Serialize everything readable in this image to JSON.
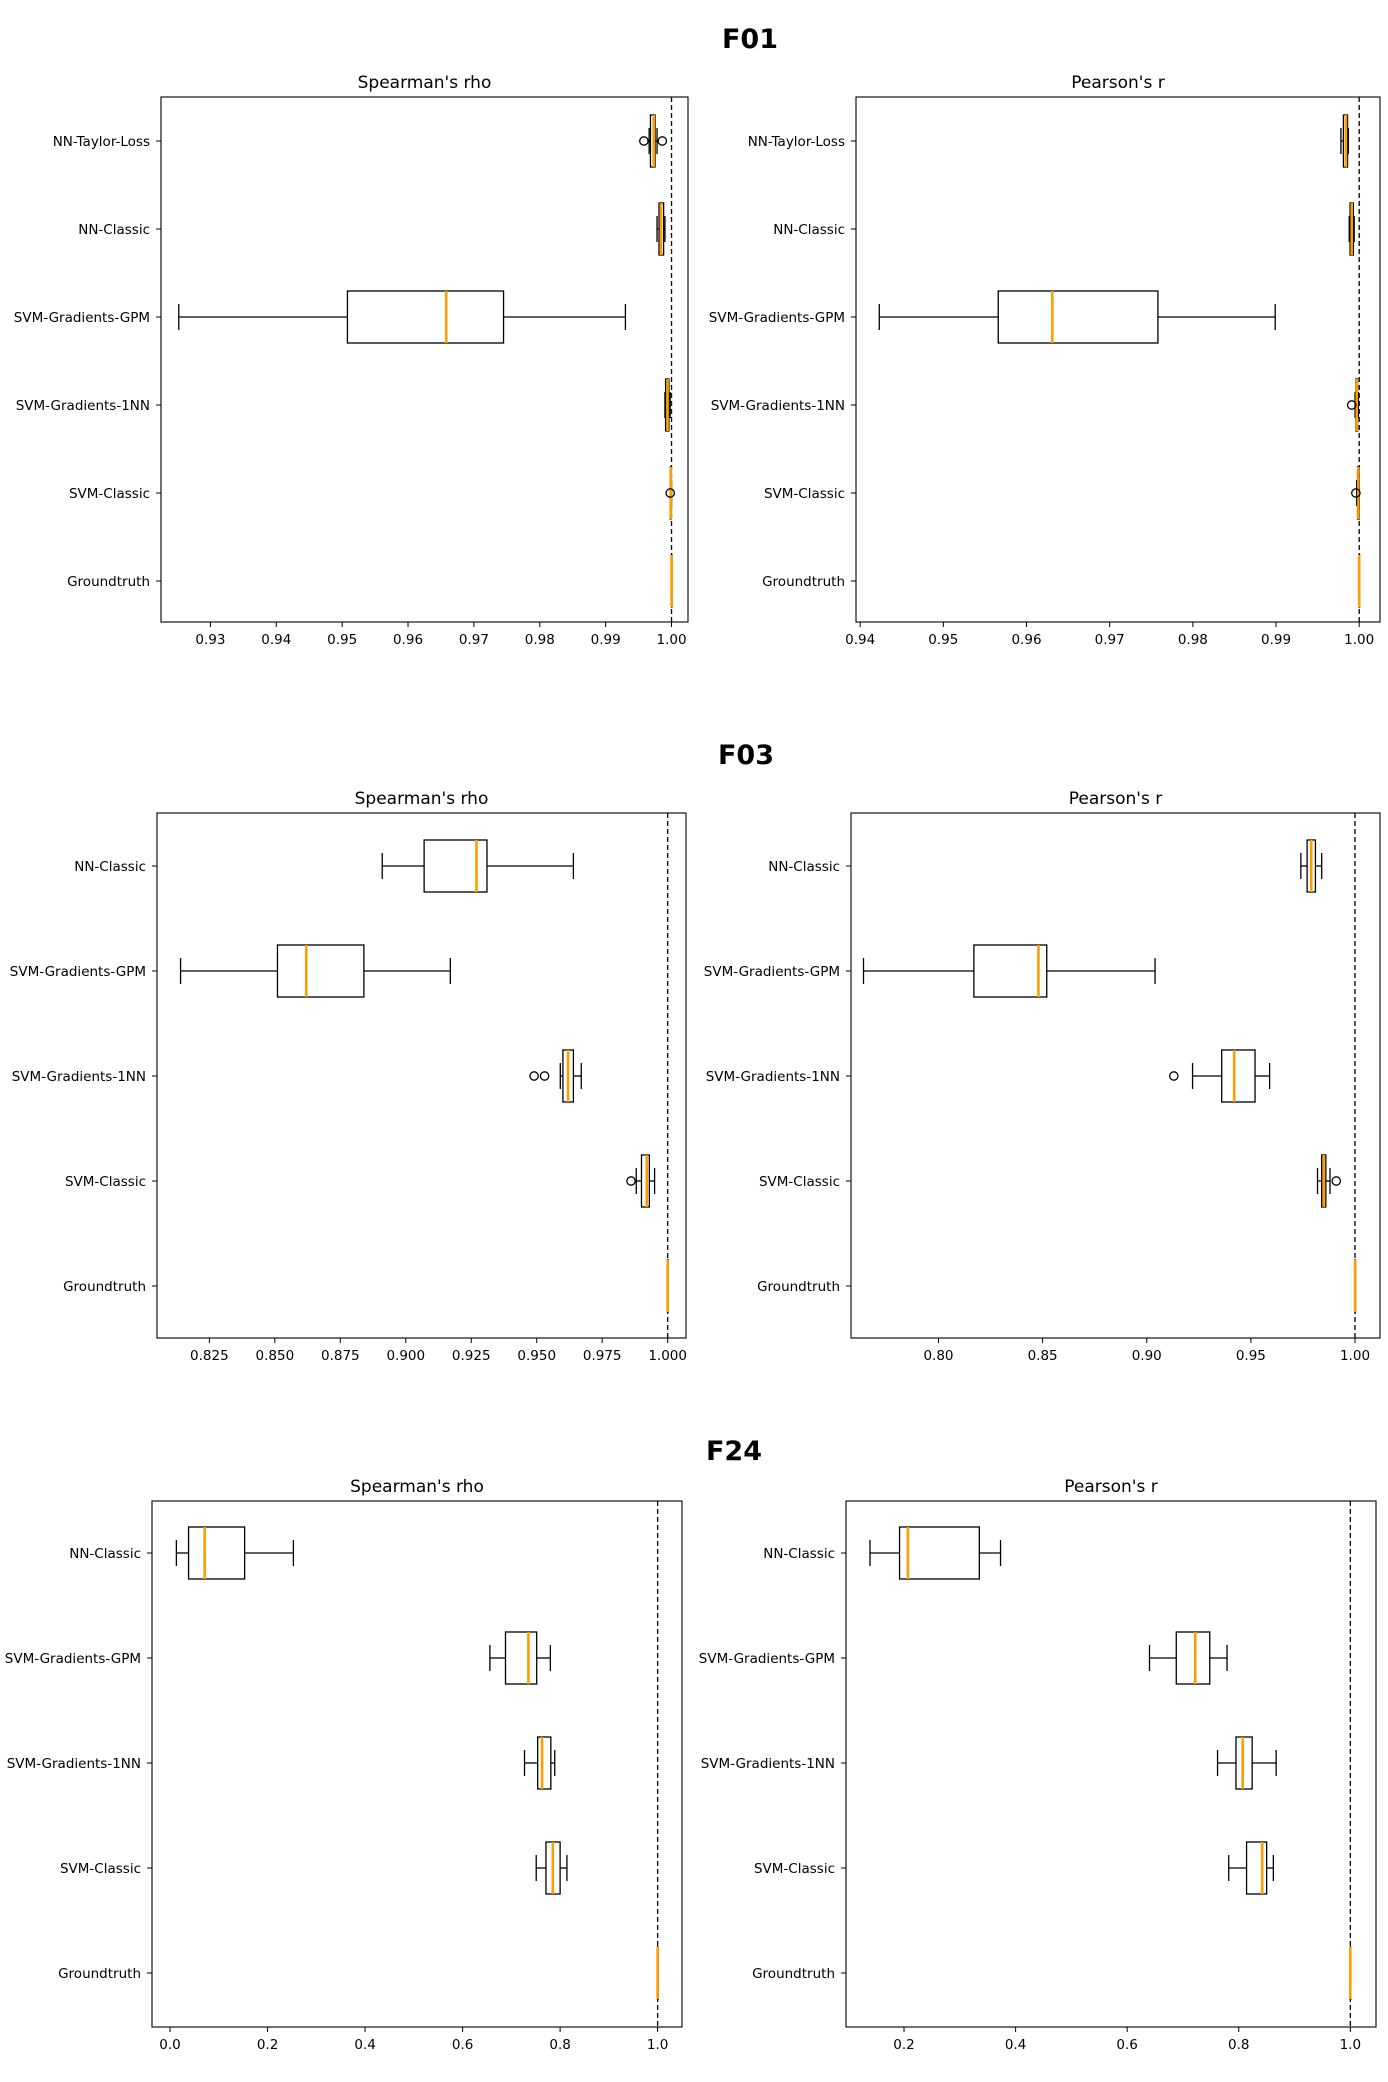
{
  "chart_data": [
    {
      "type": "box",
      "title": "F01",
      "panels": [
        {
          "title": "Spearman's rho",
          "xlim": [
            0.9225,
            1.0025
          ],
          "xticks": [
            0.93,
            0.94,
            0.95,
            0.96,
            0.97,
            0.98,
            0.99,
            1.0
          ],
          "xtick_labels": [
            "0.93",
            "0.94",
            "0.95",
            "0.96",
            "0.97",
            "0.98",
            "0.99",
            "1.00"
          ],
          "reference_line": 1.0,
          "boxes": [
            {
              "label": "NN-Taylor-Loss",
              "whislo": 0.9966,
              "q1": 0.9968,
              "median": 0.9973,
              "q3": 0.9975,
              "whishi": 0.9978,
              "fliers": [
                0.9958,
                0.9986
              ]
            },
            {
              "label": "NN-Classic",
              "whislo": 0.9978,
              "q1": 0.9981,
              "median": 0.9984,
              "q3": 0.9988,
              "whishi": 0.999,
              "fliers": []
            },
            {
              "label": "SVM-Gradients-GPM",
              "whislo": 0.9252,
              "q1": 0.9508,
              "median": 0.9658,
              "q3": 0.9745,
              "whishi": 0.993,
              "fliers": []
            },
            {
              "label": "SVM-Gradients-1NN",
              "whislo": 0.999,
              "q1": 0.9991,
              "median": 0.9994,
              "q3": 0.9996,
              "whishi": 0.9998,
              "fliers": []
            },
            {
              "label": "SVM-Classic",
              "whislo": 0.9998,
              "q1": 0.9998,
              "median": 0.9999,
              "q3": 0.9999,
              "whishi": 1.0,
              "fliers": [
                0.9998
              ]
            },
            {
              "label": "Groundtruth",
              "whislo": 1.0,
              "q1": 1.0,
              "median": 1.0,
              "q3": 1.0,
              "whishi": 1.0,
              "fliers": []
            }
          ]
        },
        {
          "title": "Pearson's r",
          "xlim": [
            0.9395,
            1.0025
          ],
          "xticks": [
            0.94,
            0.95,
            0.96,
            0.97,
            0.98,
            0.99,
            1.0
          ],
          "xtick_labels": [
            "0.94",
            "0.95",
            "0.96",
            "0.97",
            "0.98",
            "0.99",
            "1.00"
          ],
          "reference_line": 1.0,
          "boxes": [
            {
              "label": "NN-Taylor-Loss",
              "whislo": 0.9978,
              "q1": 0.9981,
              "median": 0.9984,
              "q3": 0.9986,
              "whishi": 0.9987,
              "fliers": []
            },
            {
              "label": "NN-Classic",
              "whislo": 0.9988,
              "q1": 0.9989,
              "median": 0.9991,
              "q3": 0.9993,
              "whishi": 0.9994,
              "fliers": []
            },
            {
              "label": "SVM-Gradients-GPM",
              "whislo": 0.9423,
              "q1": 0.9566,
              "median": 0.9631,
              "q3": 0.9758,
              "whishi": 0.9899,
              "fliers": []
            },
            {
              "label": "SVM-Gradients-1NN",
              "whislo": 0.9995,
              "q1": 0.9996,
              "median": 0.9997,
              "q3": 0.9998,
              "whishi": 0.9999,
              "fliers": [
                0.9991
              ]
            },
            {
              "label": "SVM-Classic",
              "whislo": 0.9997,
              "q1": 0.9998,
              "median": 0.9999,
              "q3": 1.0,
              "whishi": 1.0,
              "fliers": [
                0.9996
              ]
            },
            {
              "label": "Groundtruth",
              "whislo": 1.0,
              "q1": 1.0,
              "median": 1.0,
              "q3": 1.0,
              "whishi": 1.0,
              "fliers": []
            }
          ]
        }
      ]
    },
    {
      "type": "box",
      "title": "F03",
      "panels": [
        {
          "title": "Spearman's rho",
          "xlim": [
            0.805,
            1.007
          ],
          "xticks": [
            0.825,
            0.85,
            0.875,
            0.9,
            0.925,
            0.95,
            0.975,
            1.0
          ],
          "xtick_labels": [
            "0.825",
            "0.850",
            "0.875",
            "0.900",
            "0.925",
            "0.950",
            "0.975",
            "1.000"
          ],
          "reference_line": 1.0,
          "boxes": [
            {
              "label": "NN-Classic",
              "whislo": 0.891,
              "q1": 0.907,
              "median": 0.927,
              "q3": 0.931,
              "whishi": 0.964,
              "fliers": []
            },
            {
              "label": "SVM-Gradients-GPM",
              "whislo": 0.814,
              "q1": 0.851,
              "median": 0.862,
              "q3": 0.884,
              "whishi": 0.917,
              "fliers": []
            },
            {
              "label": "SVM-Gradients-1NN",
              "whislo": 0.959,
              "q1": 0.96,
              "median": 0.962,
              "q3": 0.964,
              "whishi": 0.967,
              "fliers": [
                0.949,
                0.953
              ]
            },
            {
              "label": "SVM-Classic",
              "whislo": 0.988,
              "q1": 0.99,
              "median": 0.992,
              "q3": 0.993,
              "whishi": 0.995,
              "fliers": [
                0.986
              ]
            },
            {
              "label": "Groundtruth",
              "whislo": 1.0,
              "q1": 1.0,
              "median": 1.0,
              "q3": 1.0,
              "whishi": 1.0,
              "fliers": []
            }
          ]
        },
        {
          "title": "Pearson's r",
          "xlim": [
            0.758,
            1.012
          ],
          "xticks": [
            0.8,
            0.85,
            0.9,
            0.95,
            1.0
          ],
          "xtick_labels": [
            "0.80",
            "0.85",
            "0.90",
            "0.95",
            "1.00"
          ],
          "reference_line": 1.0,
          "boxes": [
            {
              "label": "NN-Classic",
              "whislo": 0.974,
              "q1": 0.977,
              "median": 0.979,
              "q3": 0.981,
              "whishi": 0.984,
              "fliers": []
            },
            {
              "label": "SVM-Gradients-GPM",
              "whislo": 0.764,
              "q1": 0.817,
              "median": 0.848,
              "q3": 0.852,
              "whishi": 0.904,
              "fliers": []
            },
            {
              "label": "SVM-Gradients-1NN",
              "whislo": 0.922,
              "q1": 0.936,
              "median": 0.942,
              "q3": 0.952,
              "whishi": 0.959,
              "fliers": [
                0.913
              ]
            },
            {
              "label": "SVM-Classic",
              "whislo": 0.982,
              "q1": 0.984,
              "median": 0.985,
              "q3": 0.986,
              "whishi": 0.988,
              "fliers": [
                0.991
              ]
            },
            {
              "label": "Groundtruth",
              "whislo": 1.0,
              "q1": 1.0,
              "median": 1.0,
              "q3": 1.0,
              "whishi": 1.0,
              "fliers": []
            }
          ]
        }
      ]
    },
    {
      "type": "box",
      "title": "F24",
      "panels": [
        {
          "title": "Spearman's rho",
          "xlim": [
            -0.037,
            1.05
          ],
          "xticks": [
            0.0,
            0.2,
            0.4,
            0.6,
            0.8,
            1.0
          ],
          "xtick_labels": [
            "0.0",
            "0.2",
            "0.4",
            "0.6",
            "0.8",
            "1.0"
          ],
          "reference_line": 1.0,
          "boxes": [
            {
              "label": "NN-Classic",
              "whislo": 0.013,
              "q1": 0.038,
              "median": 0.071,
              "q3": 0.153,
              "whishi": 0.253,
              "fliers": []
            },
            {
              "label": "SVM-Gradients-GPM",
              "whislo": 0.656,
              "q1": 0.688,
              "median": 0.735,
              "q3": 0.752,
              "whishi": 0.78,
              "fliers": []
            },
            {
              "label": "SVM-Gradients-1NN",
              "whislo": 0.727,
              "q1": 0.754,
              "median": 0.763,
              "q3": 0.781,
              "whishi": 0.789,
              "fliers": []
            },
            {
              "label": "SVM-Classic",
              "whislo": 0.751,
              "q1": 0.771,
              "median": 0.785,
              "q3": 0.8,
              "whishi": 0.814,
              "fliers": []
            },
            {
              "label": "Groundtruth",
              "whislo": 1.0,
              "q1": 1.0,
              "median": 1.0,
              "q3": 1.0,
              "whishi": 1.0,
              "fliers": []
            }
          ]
        },
        {
          "title": "Pearson's r",
          "xlim": [
            0.096,
            1.046
          ],
          "xticks": [
            0.2,
            0.4,
            0.6,
            0.8,
            1.0
          ],
          "xtick_labels": [
            "0.2",
            "0.4",
            "0.6",
            "0.8",
            "1.0"
          ],
          "reference_line": 1.0,
          "boxes": [
            {
              "label": "NN-Classic",
              "whislo": 0.139,
              "q1": 0.192,
              "median": 0.207,
              "q3": 0.335,
              "whishi": 0.373,
              "fliers": []
            },
            {
              "label": "SVM-Gradients-GPM",
              "whislo": 0.64,
              "q1": 0.688,
              "median": 0.722,
              "q3": 0.748,
              "whishi": 0.779,
              "fliers": []
            },
            {
              "label": "SVM-Gradients-1NN",
              "whislo": 0.762,
              "q1": 0.795,
              "median": 0.807,
              "q3": 0.824,
              "whishi": 0.867,
              "fliers": []
            },
            {
              "label": "SVM-Classic",
              "whislo": 0.782,
              "q1": 0.814,
              "median": 0.842,
              "q3": 0.85,
              "whishi": 0.862,
              "fliers": []
            },
            {
              "label": "Groundtruth",
              "whislo": 1.0,
              "q1": 1.0,
              "median": 1.0,
              "q3": 1.0,
              "whishi": 1.0,
              "fliers": []
            }
          ]
        }
      ]
    }
  ],
  "colors": {
    "median": "#ff9d00",
    "box": "#000000",
    "reference_line": "#000000",
    "background": "#ffffff"
  }
}
